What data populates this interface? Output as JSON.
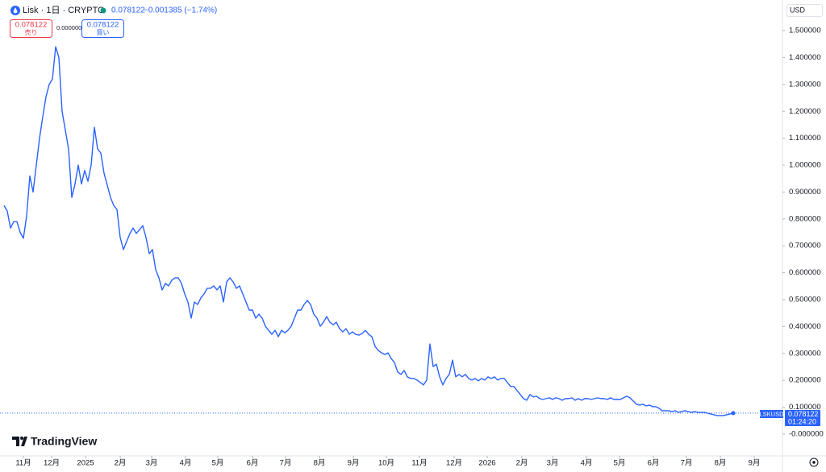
{
  "header": {
    "symbol": "Lisk · 1日 · CRYPTO",
    "change": "−0.001385 (−1.74%)",
    "sell": {
      "label": "売り"
    },
    "spread": "0.000000",
    "buy": {
      "label": "買い"
    },
    "currency": "USD"
  },
  "price_tag": {
    "ticker": "LSKUSD",
    "countdown": "01:24:20"
  },
  "logo": "TradingView",
  "chart_data": {
    "type": "line",
    "series": [
      {
        "name": "LSKUSD",
        "color": "#2962ff",
        "x": [
          0,
          1,
          2,
          3,
          4,
          5,
          6,
          7,
          8,
          9,
          10,
          11,
          12,
          13,
          14,
          15,
          16,
          17,
          18,
          19,
          20,
          21,
          22,
          23,
          24,
          25,
          26,
          27,
          28,
          29,
          30,
          31,
          32,
          33,
          34,
          35,
          36,
          37,
          38,
          39,
          40,
          41,
          42,
          43,
          44,
          45,
          46,
          47,
          48,
          49,
          50,
          51,
          52,
          53,
          54,
          55,
          56,
          57,
          58,
          59,
          60,
          61,
          62,
          63,
          64,
          65,
          66,
          67,
          68,
          69,
          70,
          71,
          72,
          73,
          74,
          75,
          76,
          77,
          78,
          79,
          80,
          81,
          82,
          83,
          84,
          85,
          86,
          87,
          88,
          89,
          90,
          91,
          92,
          93,
          94,
          95,
          96,
          97,
          98,
          99,
          100,
          101,
          102,
          103,
          104,
          105,
          106,
          107,
          108,
          109,
          110,
          111,
          112,
          113,
          114,
          115,
          116,
          117,
          118,
          119,
          120,
          121,
          122,
          123,
          124,
          125,
          126,
          127,
          128,
          129,
          130,
          131,
          132,
          133,
          134,
          135,
          136,
          137,
          138,
          139,
          140,
          141,
          142,
          143,
          144,
          145,
          146,
          147,
          148,
          149,
          150,
          151,
          152,
          153,
          154,
          155,
          156,
          157,
          158,
          159,
          160,
          161,
          162,
          163,
          164,
          165,
          166,
          167,
          168,
          169,
          170,
          171,
          172,
          173,
          174,
          175,
          176,
          177,
          178,
          179,
          180,
          181,
          182,
          183,
          184,
          185,
          186,
          187,
          188,
          189,
          190,
          191,
          192,
          193,
          194,
          195,
          196,
          197,
          198,
          199,
          200,
          201,
          202,
          203,
          204,
          205,
          206,
          207,
          208,
          209,
          210,
          211,
          212,
          213,
          214,
          215,
          216,
          217,
          218,
          219,
          220,
          221,
          222,
          223,
          224,
          225,
          226
        ],
        "values": [
          0.85,
          0.829,
          0.766,
          0.79,
          0.79,
          0.75,
          0.728,
          0.811,
          0.96,
          0.9,
          1.0,
          1.1,
          1.18,
          1.254,
          1.3,
          1.32,
          1.44,
          1.4,
          1.2,
          1.13,
          1.06,
          0.88,
          0.93,
          1.0,
          0.93,
          0.98,
          0.94,
          1.0,
          1.141,
          1.06,
          1.045,
          0.97,
          0.925,
          0.88,
          0.85,
          0.835,
          0.731,
          0.686,
          0.716,
          0.746,
          0.766,
          0.746,
          0.76,
          0.775,
          0.731,
          0.671,
          0.686,
          0.611,
          0.581,
          0.536,
          0.56,
          0.551,
          0.572,
          0.581,
          0.581,
          0.56,
          0.521,
          0.491,
          0.431,
          0.491,
          0.482,
          0.506,
          0.521,
          0.542,
          0.542,
          0.551,
          0.536,
          0.551,
          0.491,
          0.566,
          0.581,
          0.566,
          0.542,
          0.551,
          0.521,
          0.491,
          0.461,
          0.461,
          0.431,
          0.446,
          0.431,
          0.401,
          0.386,
          0.371,
          0.386,
          0.362,
          0.386,
          0.377,
          0.386,
          0.401,
          0.431,
          0.461,
          0.461,
          0.482,
          0.497,
          0.482,
          0.446,
          0.431,
          0.401,
          0.416,
          0.437,
          0.416,
          0.407,
          0.416,
          0.392,
          0.38,
          0.392,
          0.371,
          0.38,
          0.371,
          0.368,
          0.374,
          0.386,
          0.371,
          0.362,
          0.326,
          0.311,
          0.302,
          0.296,
          0.302,
          0.281,
          0.266,
          0.231,
          0.222,
          0.237,
          0.213,
          0.207,
          0.207,
          0.201,
          0.192,
          0.183,
          0.201,
          0.335,
          0.251,
          0.26,
          0.213,
          0.183,
          0.207,
          0.222,
          0.275,
          0.213,
          0.222,
          0.213,
          0.222,
          0.207,
          0.201,
          0.207,
          0.198,
          0.207,
          0.201,
          0.213,
          0.207,
          0.213,
          0.201,
          0.207,
          0.207,
          0.192,
          0.177,
          0.177,
          0.162,
          0.147,
          0.132,
          0.126,
          0.147,
          0.138,
          0.141,
          0.132,
          0.129,
          0.132,
          0.135,
          0.129,
          0.135,
          0.132,
          0.126,
          0.132,
          0.132,
          0.135,
          0.126,
          0.132,
          0.126,
          0.132,
          0.132,
          0.129,
          0.132,
          0.135,
          0.132,
          0.132,
          0.129,
          0.135,
          0.129,
          0.129,
          0.129,
          0.135,
          0.141,
          0.135,
          0.123,
          0.111,
          0.108,
          0.111,
          0.105,
          0.108,
          0.102,
          0.102,
          0.096,
          0.087,
          0.087,
          0.087,
          0.084,
          0.087,
          0.081,
          0.084,
          0.087,
          0.084,
          0.081,
          0.084,
          0.081,
          0.081,
          0.081,
          0.078,
          0.075,
          0.072,
          0.069,
          0.069,
          0.069,
          0.072,
          0.075,
          0.078122
        ]
      }
    ],
    "xlim": [
      -1.25,
      241.25
    ],
    "xticks": [
      {
        "value": 6,
        "label": "11月"
      },
      {
        "value": 14.75,
        "label": "12月"
      },
      {
        "value": 25.25,
        "label": "2025"
      },
      {
        "value": 36,
        "label": "2月"
      },
      {
        "value": 45.75,
        "label": "3月"
      },
      {
        "value": 56.25,
        "label": "4月"
      },
      {
        "value": 66.25,
        "label": "5月"
      },
      {
        "value": 77,
        "label": "6月"
      },
      {
        "value": 87.25,
        "label": "7月"
      },
      {
        "value": 97.75,
        "label": "8月"
      },
      {
        "value": 108.25,
        "label": "9月"
      },
      {
        "value": 118.5,
        "label": "10月"
      },
      {
        "value": 128.75,
        "label": "11月"
      },
      {
        "value": 139.5,
        "label": "12月"
      },
      {
        "value": 149.75,
        "label": "2026"
      },
      {
        "value": 160.5,
        "label": "2月"
      },
      {
        "value": 170,
        "label": "3月"
      },
      {
        "value": 180.5,
        "label": "4月"
      },
      {
        "value": 190.75,
        "label": "5月"
      },
      {
        "value": 201.25,
        "label": "6月"
      },
      {
        "value": 211.5,
        "label": "7月"
      },
      {
        "value": 222,
        "label": "8月"
      },
      {
        "value": 232.5,
        "label": "9月"
      }
    ],
    "ylim": [
      -0.081,
      1.614
    ],
    "yticks": [
      {
        "value": 0,
        "label": "-0.000000"
      },
      {
        "value": 0.1,
        "label": "0.100000"
      },
      {
        "value": 0.2,
        "label": "0.200000"
      },
      {
        "value": 0.3,
        "label": "0.300000"
      },
      {
        "value": 0.4,
        "label": "0.400000"
      },
      {
        "value": 0.5,
        "label": "0.500000"
      },
      {
        "value": 0.6,
        "label": "0.600000"
      },
      {
        "value": 0.7,
        "label": "0.700000"
      },
      {
        "value": 0.8,
        "label": "0.800000"
      },
      {
        "value": 0.9,
        "label": "0.900000"
      },
      {
        "value": 1.0,
        "label": "1.000000"
      },
      {
        "value": 1.1,
        "label": "1.100000"
      },
      {
        "value": 1.2,
        "label": "1.200000"
      },
      {
        "value": 1.3,
        "label": "1.300000"
      },
      {
        "value": 1.4,
        "label": "1.400000"
      },
      {
        "value": 1.5,
        "label": "1.500000"
      }
    ],
    "grid": false
  }
}
